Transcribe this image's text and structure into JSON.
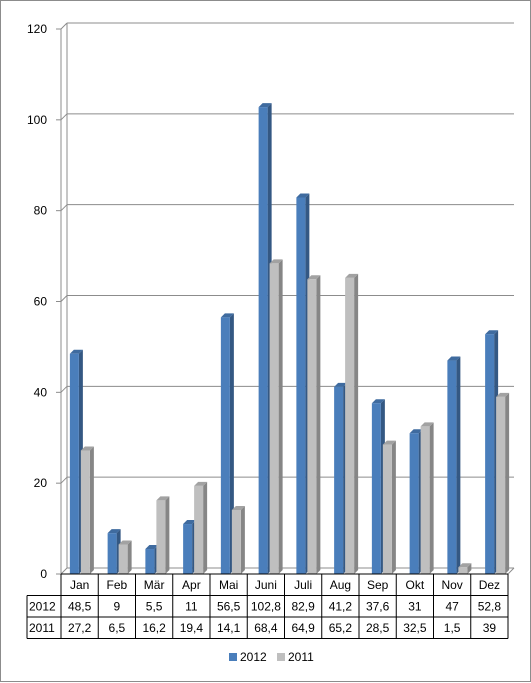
{
  "chart_data": {
    "type": "bar",
    "categories": [
      "Jan",
      "Feb",
      "Mär",
      "Apr",
      "Mai",
      "Juni",
      "Juli",
      "Aug",
      "Sep",
      "Okt",
      "Nov",
      "Dez"
    ],
    "series": [
      {
        "name": "2012",
        "values": [
          48.5,
          9,
          5.5,
          11,
          56.5,
          102.8,
          82.9,
          41.2,
          37.6,
          31,
          47,
          52.8
        ],
        "labels": [
          "48,5",
          "9",
          "5,5",
          "11",
          "56,5",
          "102,8",
          "82,9",
          "41,2",
          "37,6",
          "31",
          "47",
          "52,8"
        ],
        "color": "#4a7ebb"
      },
      {
        "name": "2011",
        "values": [
          27.2,
          6.5,
          16.2,
          19.4,
          14.1,
          68.4,
          64.9,
          65.2,
          28.5,
          32.5,
          1.5,
          39
        ],
        "labels": [
          "27,2",
          "6,5",
          "16,2",
          "19,4",
          "14,1",
          "68,4",
          "64,9",
          "65,2",
          "28,5",
          "32,5",
          "1,5",
          "39"
        ],
        "color": "#bfbfbf"
      }
    ],
    "ylim": [
      0,
      120
    ],
    "yticks": [
      "0",
      "20",
      "40",
      "60",
      "80",
      "100",
      "120"
    ],
    "grid": true,
    "data_table": true,
    "legend_position": "bottom"
  }
}
